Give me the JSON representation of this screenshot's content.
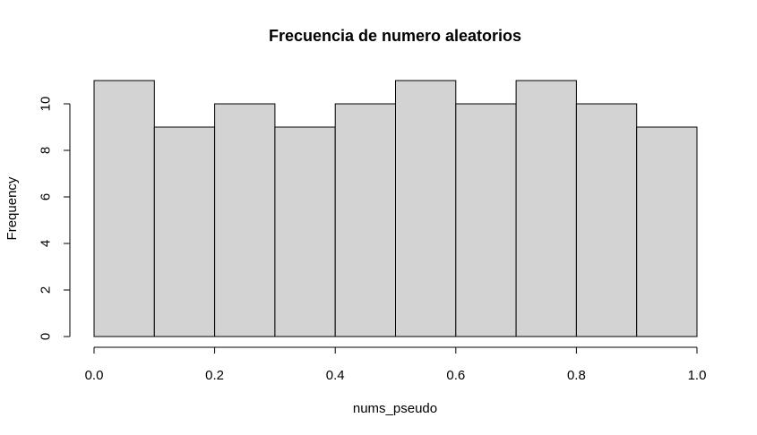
{
  "chart_data": {
    "type": "bar",
    "title": "Frecuencia de numero aleatorios",
    "xlabel": "nums_pseudo",
    "ylabel": "Frequency",
    "bins": [
      {
        "start": 0.0,
        "end": 0.1,
        "count": 11
      },
      {
        "start": 0.1,
        "end": 0.2,
        "count": 9
      },
      {
        "start": 0.2,
        "end": 0.3,
        "count": 10
      },
      {
        "start": 0.3,
        "end": 0.4,
        "count": 9
      },
      {
        "start": 0.4,
        "end": 0.5,
        "count": 10
      },
      {
        "start": 0.5,
        "end": 0.6,
        "count": 11
      },
      {
        "start": 0.6,
        "end": 0.7,
        "count": 10
      },
      {
        "start": 0.7,
        "end": 0.8,
        "count": 11
      },
      {
        "start": 0.8,
        "end": 0.9,
        "count": 10
      },
      {
        "start": 0.9,
        "end": 1.0,
        "count": 9
      }
    ],
    "xlim": [
      0,
      1
    ],
    "ylim": [
      0,
      11
    ],
    "x_ticks": [
      "0.0",
      "0.2",
      "0.4",
      "0.6",
      "0.8",
      "1.0"
    ],
    "y_ticks": [
      "0",
      "2",
      "4",
      "6",
      "8",
      "10"
    ],
    "grid": false,
    "bar_color": "#d3d3d3",
    "edge_color": "#000000"
  }
}
